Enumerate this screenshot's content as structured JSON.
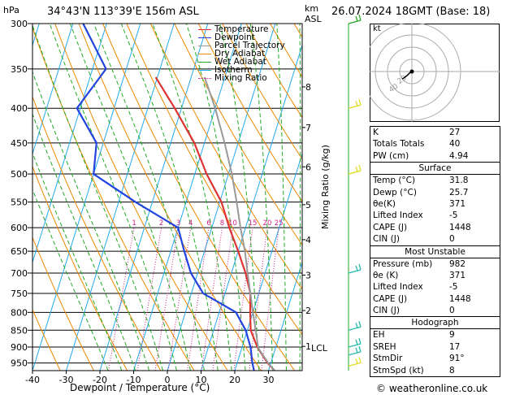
{
  "header": {
    "hpa_label": "hPa",
    "location": "34°43'N  113°39'E  156m  ASL",
    "km_label": "km",
    "asl_label": "ASL",
    "datetime": "26.07.2024  18GMT  (Base: 18)"
  },
  "colors": {
    "temperature": "#dd3333",
    "dewpoint": "#2244dd",
    "parcel": "#999999",
    "dry_adiabat": "#ee8800",
    "wet_adiabat": "#22aa22",
    "isotherm": "#22aaee",
    "mixing_ratio": "#cc2288"
  },
  "legend": [
    {
      "label": "Temperature",
      "color": "#dd3333",
      "style": "solid"
    },
    {
      "label": "Dewpoint",
      "color": "#2244dd",
      "style": "solid"
    },
    {
      "label": "Parcel Trajectory",
      "color": "#999999",
      "style": "solid"
    },
    {
      "label": "Dry Adiabat",
      "color": "#ee8800",
      "style": "solid"
    },
    {
      "label": "Wet Adiabat",
      "color": "#22aa22",
      "style": "solid"
    },
    {
      "label": "Isotherm",
      "color": "#22aaee",
      "style": "solid"
    },
    {
      "label": "Mixing Ratio",
      "color": "#cc2288",
      "style": "dotted"
    }
  ],
  "chart_data": {
    "type": "line",
    "xlabel": "Dewpoint / Temperature (°C)",
    "ylabel_right": "Mixing Ratio (g/kg)",
    "xlim": [
      -40,
      40
    ],
    "ylim": [
      300,
      975
    ],
    "y_scale": "log",
    "x_ticks": [
      "-40",
      "-30",
      "-20",
      "-10",
      "0",
      "10",
      "20",
      "30"
    ],
    "pressure_ticks": [
      300,
      350,
      400,
      450,
      500,
      550,
      600,
      650,
      700,
      750,
      800,
      850,
      900,
      950
    ],
    "km_ticks": [
      {
        "label": "8",
        "p": 372
      },
      {
        "label": "7",
        "p": 427
      },
      {
        "label": "6",
        "p": 488
      },
      {
        "label": "5",
        "p": 555
      },
      {
        "label": "4",
        "p": 625
      },
      {
        "label": "3",
        "p": 705
      },
      {
        "label": "2",
        "p": 795
      },
      {
        "label": "1",
        "p": 898
      }
    ],
    "lcl_label": "LCL",
    "lcl_p": 902,
    "mixing_ratio_labels": [
      "1",
      "2",
      "3",
      "4",
      "6",
      "8",
      "10",
      "15",
      "20",
      "25"
    ],
    "series": [
      {
        "name": "Temperature",
        "color": "#dd3333",
        "p": [
          975,
          950,
          900,
          850,
          800,
          750,
          700,
          650,
          600,
          550,
          500,
          450,
          400,
          360
        ],
        "t": [
          31.8,
          29.0,
          24.5,
          21.0,
          19.2,
          17.5,
          14.2,
          10.0,
          5.2,
          0.5,
          -6.5,
          -13.0,
          -22.0,
          -30.5
        ]
      },
      {
        "name": "Dewpoint",
        "color": "#2244dd",
        "p": [
          975,
          950,
          900,
          850,
          800,
          750,
          700,
          650,
          600,
          550,
          500,
          450,
          400,
          350,
          300
        ],
        "t": [
          25.7,
          24.5,
          22.5,
          19.5,
          15.0,
          3.5,
          -2.0,
          -6.0,
          -10.0,
          -25.0,
          -40.0,
          -42.0,
          -51.0,
          -46.0,
          -57.0
        ]
      },
      {
        "name": "Parcel Trajectory",
        "color": "#999999",
        "p": [
          975,
          950,
          902,
          850,
          800,
          750,
          700,
          650,
          600,
          550,
          500,
          450,
          400,
          360
        ],
        "t": [
          31.8,
          29.2,
          24.8,
          22.5,
          20.0,
          17.5,
          14.8,
          12.0,
          8.5,
          5.0,
          1.0,
          -4.0,
          -10.0,
          -16.0
        ]
      }
    ]
  },
  "wind_barbs": [
    {
      "p": 300,
      "color": "#22aa22"
    },
    {
      "p": 400,
      "color": "#dddd22"
    },
    {
      "p": 500,
      "color": "#dddd22"
    },
    {
      "p": 700,
      "color": "#22bbaa"
    },
    {
      "p": 850,
      "color": "#22bbaa"
    },
    {
      "p": 900,
      "color": "#22bbaa"
    },
    {
      "p": 925,
      "color": "#22bbaa"
    },
    {
      "p": 960,
      "color": "#dddd22"
    }
  ],
  "hodograph": {
    "unit_label": "kt",
    "ring_labels": [
      "20",
      "40"
    ],
    "trace": [
      [
        0,
        0
      ],
      [
        -3,
        -2
      ],
      [
        -6,
        -5
      ],
      [
        -10,
        -8
      ],
      [
        -12,
        -9
      ]
    ]
  },
  "indices": {
    "block1": [
      {
        "k": "K",
        "v": "27"
      },
      {
        "k": "Totals Totals",
        "v": "40"
      },
      {
        "k": "PW (cm)",
        "v": "4.94"
      }
    ],
    "surface": {
      "title": "Surface",
      "rows": [
        {
          "k": "Temp (°C)",
          "v": "31.8"
        },
        {
          "k": "Dewp (°C)",
          "v": "25.7"
        },
        {
          "k": "θe(K)",
          "v": "371"
        },
        {
          "k": "Lifted Index",
          "v": "-5"
        },
        {
          "k": "CAPE (J)",
          "v": "1448"
        },
        {
          "k": "CIN (J)",
          "v": "0"
        }
      ]
    },
    "most_unstable": {
      "title": "Most Unstable",
      "rows": [
        {
          "k": "Pressure (mb)",
          "v": "982"
        },
        {
          "k": "θe (K)",
          "v": "371"
        },
        {
          "k": "Lifted Index",
          "v": "-5"
        },
        {
          "k": "CAPE (J)",
          "v": "1448"
        },
        {
          "k": "CIN (J)",
          "v": "0"
        }
      ]
    },
    "hodograph": {
      "title": "Hodograph",
      "rows": [
        {
          "k": "EH",
          "v": "9"
        },
        {
          "k": "SREH",
          "v": "17"
        },
        {
          "k": "StmDir",
          "v": "91°"
        },
        {
          "k": "StmSpd (kt)",
          "v": "8"
        }
      ]
    }
  },
  "copyright": "© weatheronline.co.uk"
}
